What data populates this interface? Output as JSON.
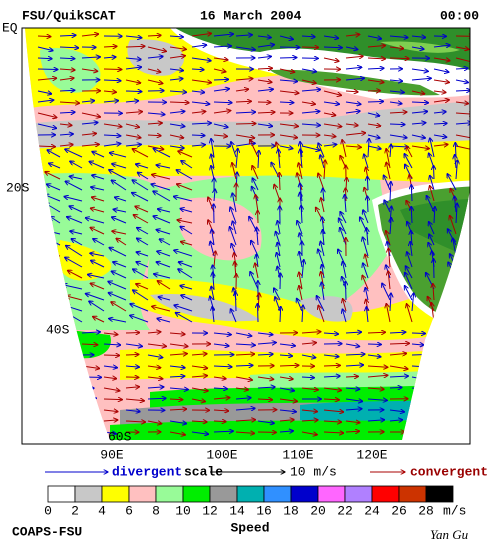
{
  "header": {
    "source": "FSU/QuikSCAT",
    "date": "16 March 2004",
    "time": "00:00"
  },
  "map": {
    "latitude_labels": [
      "EQ",
      "20S",
      "40S",
      "60S"
    ],
    "longitude_labels": [
      "90E",
      "100E",
      "110E",
      "120E"
    ]
  },
  "legend": {
    "divergent": "divergent",
    "scale": "scale",
    "scale_value": "10 m/s",
    "convergent": "convergent"
  },
  "colorbar": {
    "title": "Speed",
    "unit": "m/s",
    "ticks": [
      0,
      2,
      4,
      6,
      8,
      10,
      12,
      14,
      16,
      18,
      20,
      22,
      24,
      26,
      28
    ],
    "colors": [
      "#ffffff",
      "#c8c8c8",
      "#ffff00",
      "#ffc0c0",
      "#98fb98",
      "#00ee00",
      "#999999",
      "#00b0b0",
      "#3090ff",
      "#0000cc",
      "#ff66ff",
      "#b080ff",
      "#ff0000",
      "#cc3300",
      "#000000"
    ]
  },
  "footer": {
    "institution": "COAPS-FSU",
    "author": "Yan Gu"
  }
}
